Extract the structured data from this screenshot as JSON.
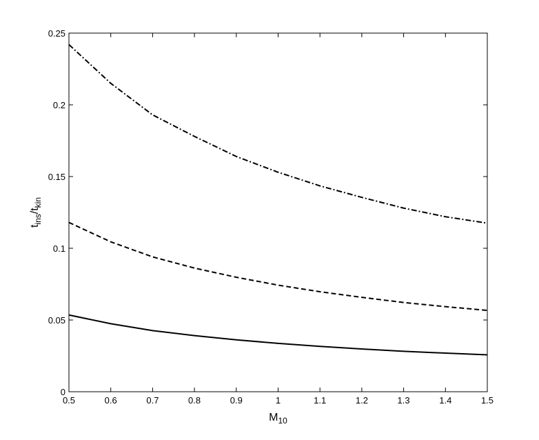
{
  "chart_data": {
    "type": "line",
    "xlabel": [
      "M",
      "10"
    ],
    "ylabel": [
      "t",
      "ins",
      "/t",
      "kin"
    ],
    "x": [
      0.5,
      0.6,
      0.7,
      0.8,
      0.9,
      1.0,
      1.1,
      1.2,
      1.3,
      1.4,
      1.5
    ],
    "series": [
      {
        "color": "#000000",
        "dash": "solid",
        "values": [
          0.0535,
          0.0474,
          0.0426,
          0.0391,
          0.0362,
          0.0337,
          0.0316,
          0.0298,
          0.0282,
          0.0269,
          0.0257
        ]
      },
      {
        "color": "#000000",
        "dash": "dashed",
        "values": [
          0.118,
          0.1045,
          0.094,
          0.0862,
          0.0798,
          0.0743,
          0.0697,
          0.0658,
          0.0622,
          0.0593,
          0.0567
        ]
      },
      {
        "color": "#000000",
        "dash": "dashdot",
        "values": [
          0.242,
          0.215,
          0.193,
          0.178,
          0.164,
          0.153,
          0.1435,
          0.1355,
          0.128,
          0.122,
          0.1175
        ]
      }
    ],
    "xlim": [
      0.5,
      1.5
    ],
    "xticks": [
      0.5,
      0.6,
      0.7,
      0.8,
      0.9,
      1,
      1.1,
      1.2,
      1.3,
      1.4,
      1.5
    ],
    "ylim": [
      0,
      0.25
    ],
    "yticks": [
      0,
      0.05,
      0.1,
      0.15,
      0.2,
      0.25
    ],
    "grid": false
  }
}
